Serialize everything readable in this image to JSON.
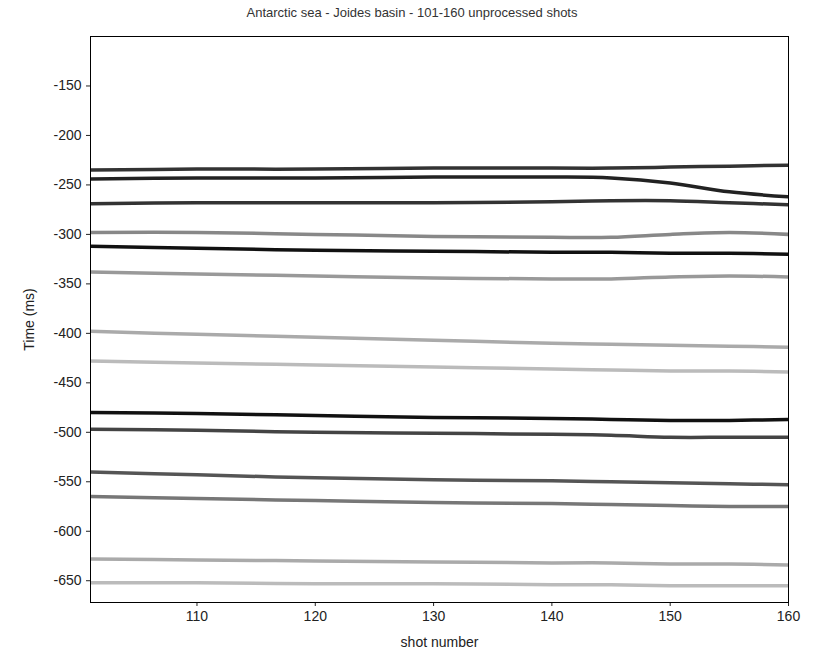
{
  "chart_data": {
    "type": "line",
    "title": "Antarctic sea - Joides basin - 101-160 unprocessed shots",
    "x_label": "shot number",
    "y_label": "Time (ms)",
    "x": [
      101,
      110,
      120,
      130,
      140,
      145,
      150,
      155,
      160
    ],
    "xlim": [
      101,
      160
    ],
    "xticks": [
      110,
      120,
      130,
      140,
      150,
      160
    ],
    "ylim": [
      -672,
      -100
    ],
    "yticks": [
      -650,
      -600,
      -550,
      -500,
      -450,
      -400,
      -350,
      -300,
      -250,
      -200,
      -150
    ],
    "grid": false,
    "series": [
      {
        "color": "#333333",
        "values": [
          -235,
          -234,
          -234,
          -233,
          -233,
          -233,
          -232,
          -231,
          -230
        ]
      },
      {
        "color": "#222222",
        "values": [
          -244,
          -243,
          -243,
          -242,
          -242,
          -243,
          -248,
          -257,
          -262
        ]
      },
      {
        "color": "#333333",
        "values": [
          -269,
          -268,
          -268,
          -268,
          -267,
          -266,
          -266,
          -268,
          -270
        ]
      },
      {
        "color": "#888888",
        "values": [
          -298,
          -298,
          -300,
          -302,
          -303,
          -303,
          -300,
          -298,
          -300
        ]
      },
      {
        "color": "#111111",
        "values": [
          -312,
          -314,
          -316,
          -317,
          -318,
          -318,
          -319,
          -319,
          -320
        ]
      },
      {
        "color": "#999999",
        "values": [
          -338,
          -340,
          -342,
          -344,
          -345,
          -345,
          -343,
          -342,
          -343
        ]
      },
      {
        "color": "#aaaaaa",
        "values": [
          -398,
          -401,
          -404,
          -407,
          -410,
          -411,
          -412,
          -413,
          -414
        ]
      },
      {
        "color": "#bbbbbb",
        "values": [
          -428,
          -430,
          -432,
          -434,
          -436,
          -437,
          -438,
          -438,
          -439
        ]
      },
      {
        "color": "#111111",
        "values": [
          -480,
          -481,
          -483,
          -485,
          -486,
          -487,
          -488,
          -488,
          -487
        ]
      },
      {
        "color": "#444444",
        "values": [
          -497,
          -498,
          -500,
          -501,
          -502,
          -503,
          -505,
          -505,
          -505
        ]
      },
      {
        "color": "#555555",
        "values": [
          -540,
          -543,
          -546,
          -548,
          -549,
          -550,
          -551,
          -552,
          -553
        ]
      },
      {
        "color": "#777777",
        "values": [
          -565,
          -567,
          -569,
          -571,
          -572,
          -573,
          -574,
          -575,
          -575
        ]
      },
      {
        "color": "#aaaaaa",
        "values": [
          -628,
          -629,
          -630,
          -631,
          -632,
          -632,
          -633,
          -633,
          -634
        ]
      },
      {
        "color": "#bbbbbb",
        "values": [
          -652,
          -652,
          -653,
          -653,
          -654,
          -654,
          -655,
          -655,
          -655
        ]
      }
    ]
  }
}
